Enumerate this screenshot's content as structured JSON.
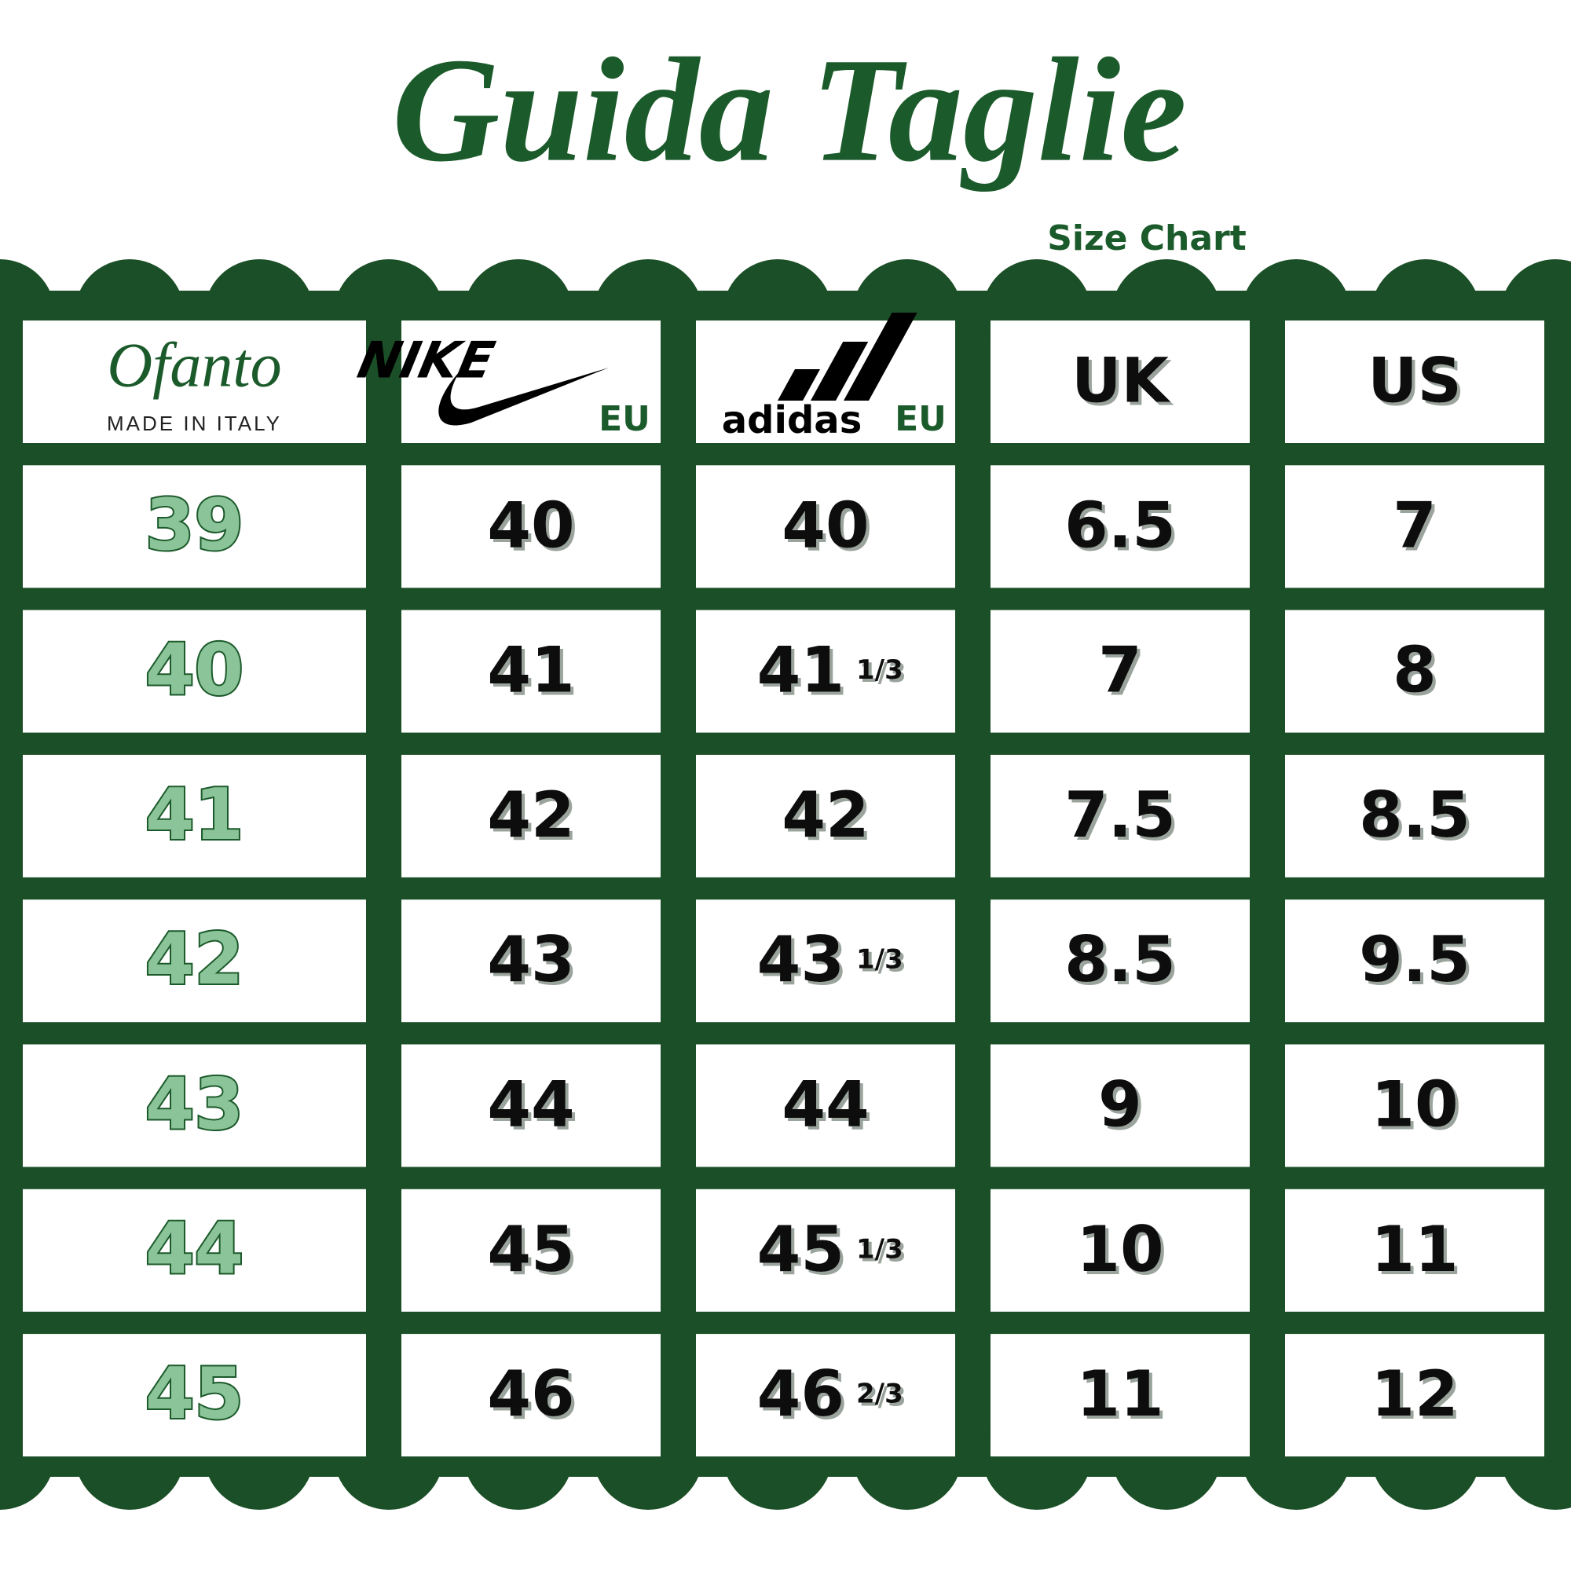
{
  "header": {
    "title": "Guida Taglie",
    "subtitle": "Size Chart"
  },
  "table": {
    "columns": {
      "ofanto": {
        "brand": "Ofanto",
        "tagline": "MADE IN ITALY"
      },
      "nike": {
        "brand": "NIKE",
        "unit": "EU"
      },
      "adidas": {
        "brand": "adidas",
        "unit": "EU"
      },
      "uk": "UK",
      "us": "US"
    },
    "rows": [
      {
        "ofanto": "39",
        "nike": "40",
        "adidas": "40",
        "uk": "6.5",
        "us": "7"
      },
      {
        "ofanto": "40",
        "nike": "41",
        "adidas": "41",
        "adidas_fraction": "1/3",
        "uk": "7",
        "us": "8"
      },
      {
        "ofanto": "41",
        "nike": "42",
        "adidas": "42",
        "uk": "7.5",
        "us": "8.5"
      },
      {
        "ofanto": "42",
        "nike": "43",
        "adidas": "43",
        "adidas_fraction": "1/3",
        "uk": "8.5",
        "us": "9.5"
      },
      {
        "ofanto": "43",
        "nike": "44",
        "adidas": "44",
        "uk": "9",
        "us": "10"
      },
      {
        "ofanto": "44",
        "nike": "45",
        "adidas": "45",
        "adidas_fraction": "1/3",
        "uk": "10",
        "us": "11"
      },
      {
        "ofanto": "45",
        "nike": "46",
        "adidas": "46",
        "adidas_fraction": "2/3",
        "uk": "11",
        "us": "12"
      }
    ]
  }
}
